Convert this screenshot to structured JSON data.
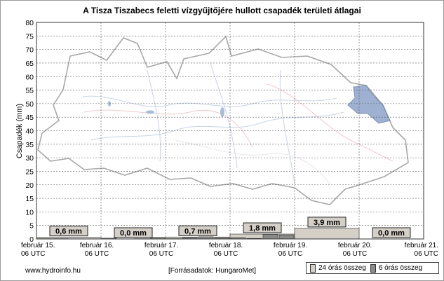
{
  "chart_data": {
    "type": "bar",
    "title": "A Tisza Tiszabecs feletti vízgyűjtőjére hullott csapadék területi átlagai",
    "ylabel": "Csapadék (mm)",
    "ylim": [
      0,
      80
    ],
    "y_ticks": [
      "0",
      "5",
      "10",
      "15",
      "20",
      "25",
      "30",
      "35",
      "40",
      "45",
      "50",
      "55",
      "60",
      "65",
      "70",
      "75",
      "80"
    ],
    "x_ticks": [
      {
        "date": "február 15.",
        "time": "06 UTC"
      },
      {
        "date": "február 16.",
        "time": "06 UTC"
      },
      {
        "date": "február 17.",
        "time": "06 UTC"
      },
      {
        "date": "február 18.",
        "time": "06 UTC"
      },
      {
        "date": "február 19.",
        "time": "06 UTC"
      },
      {
        "date": "február 20.",
        "time": "06 UTC"
      },
      {
        "date": "február 21.",
        "time": "06 UTC"
      }
    ],
    "grid": true,
    "series": [
      {
        "name": "24 órás összeg",
        "values": [
          0.6,
          0.0,
          0.7,
          1.8,
          3.9,
          0.0
        ],
        "color": "#d4d0c8"
      },
      {
        "name": "6 órás összeg",
        "values": [
          0.1,
          0.1,
          0.0,
          0.0,
          0.3,
          0.0,
          0.1,
          0.6,
          0.1,
          0.5,
          0.8,
          0.4,
          0.5,
          0.2,
          1.7,
          1.5,
          0.0,
          0.0,
          0.0,
          0.0,
          0.0,
          0.0,
          0.0,
          0.0
        ],
        "color": "#8a8a8a"
      }
    ],
    "data_labels": [
      "0,6 mm",
      "0,0 mm",
      "0,7 mm",
      "1,8 mm",
      "3,9 mm",
      "0,0 mm"
    ]
  },
  "footer": {
    "source_site": "www.hydroinfo.hu",
    "data_source": "[Forrásadatok: HungaroMet]"
  },
  "legend": {
    "items": [
      "24 órás összeg",
      "6 órás összeg"
    ]
  },
  "colors": {
    "grid": "#555555",
    "map_fill": "#ffffff",
    "highlight_region": "#8fa4cc"
  }
}
